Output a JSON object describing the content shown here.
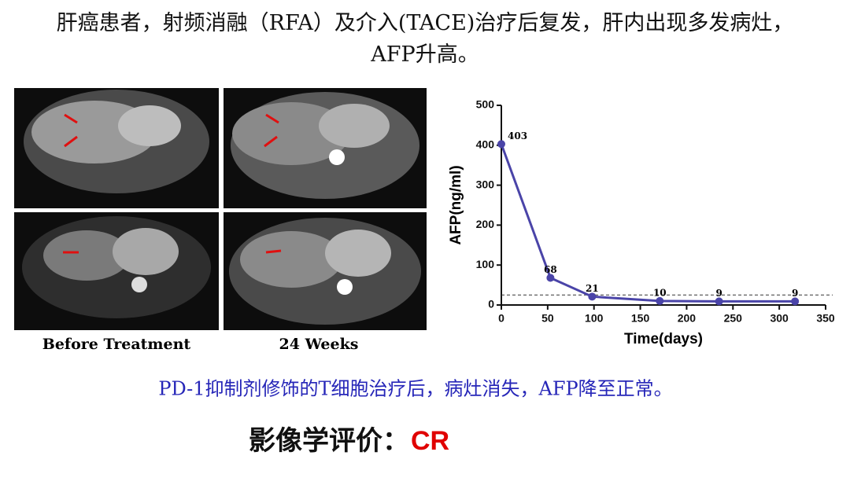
{
  "title": "肝癌患者，射频消融（RFA）及介入(TACE)治疗后复发，肝内出现多发病灶，AFP升高。",
  "image_captions": [
    "Before Treatment",
    "24 Weeks"
  ],
  "result_text": "PD-1抑制剂修饰的T细胞治疗后，病灶消失，AFP降至正常。",
  "evaluation_label": "影像学评价：",
  "evaluation_value": "CR",
  "chart_data": {
    "type": "line",
    "x": [
      0,
      53,
      98,
      171,
      235,
      317
    ],
    "values": [
      403,
      68,
      21,
      10,
      9,
      9
    ],
    "color": "#4a44a8",
    "xlabel": "Time(days)",
    "ylabel": "AFP(ng/ml)",
    "xlim": [
      0,
      350
    ],
    "xticks": [
      0,
      50,
      100,
      150,
      200,
      250,
      300,
      350
    ],
    "ylim": [
      0,
      500
    ],
    "yticks": [
      0,
      100,
      200,
      300,
      400,
      500
    ],
    "reference_line": 25
  }
}
